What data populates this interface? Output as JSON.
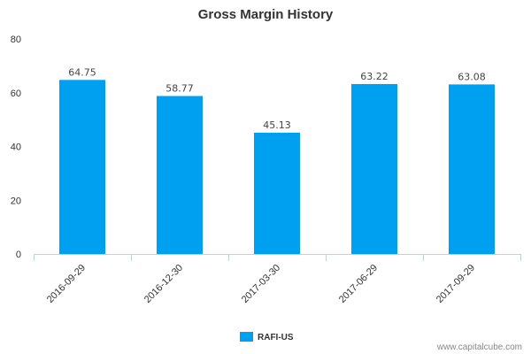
{
  "chart_data": {
    "type": "bar",
    "title": "Gross Margin History",
    "categories": [
      "2016-09-29",
      "2016-12-30",
      "2017-03-30",
      "2017-06-29",
      "2017-09-29"
    ],
    "series": [
      {
        "name": "RAFI-US",
        "color": "#00a0f0",
        "values": [
          64.75,
          58.77,
          45.13,
          63.22,
          63.08
        ],
        "value_labels": [
          "64.75",
          "58.77",
          "45.13",
          "63.22",
          "63.08"
        ]
      }
    ],
    "xlabel": "",
    "ylabel": "",
    "ylim": [
      0,
      80
    ],
    "y_ticks": [
      0,
      20,
      40,
      60,
      80
    ],
    "y_tick_labels": [
      "0",
      "20",
      "40",
      "60",
      "80"
    ],
    "grid": false,
    "legend_position": "bottom-center"
  },
  "credit": "www.capitalcube.com",
  "colors": {
    "axis": "#c0d0e0",
    "text": "#333333"
  }
}
